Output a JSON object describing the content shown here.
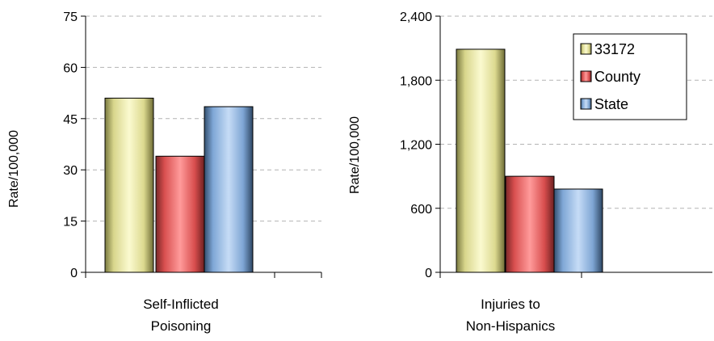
{
  "chart_data": [
    {
      "type": "bar",
      "ylabel": "Rate/100,000",
      "category_lines": [
        "Self-Inflicted",
        "Poisoning"
      ],
      "ylim": [
        0,
        75
      ],
      "yticks": [
        "0",
        "15",
        "30",
        "45",
        "60",
        "75"
      ],
      "ytick_values": [
        0,
        15,
        30,
        45,
        60,
        75
      ],
      "grid": "horizontal dashed",
      "series": [
        {
          "name": "33172",
          "value": 51
        },
        {
          "name": "County",
          "value": 34
        },
        {
          "name": "State",
          "value": 48.5
        }
      ]
    },
    {
      "type": "bar",
      "ylabel": "Rate/100,000",
      "category_lines": [
        "Injuries to",
        "Non-Hispanics"
      ],
      "ylim": [
        0,
        2400
      ],
      "yticks": [
        "0",
        "600",
        "1,200",
        "1,800",
        "2,400"
      ],
      "ytick_values": [
        0,
        600,
        1200,
        1800,
        2400
      ],
      "grid": "horizontal dashed",
      "legend": {
        "placement": "top-right",
        "entries": [
          "33172",
          "County",
          "State"
        ]
      },
      "series": [
        {
          "name": "33172",
          "value": 2090
        },
        {
          "name": "County",
          "value": 900
        },
        {
          "name": "State",
          "value": 780
        }
      ]
    }
  ],
  "colors": {
    "series": [
      "#f2f0a8",
      "#f06a6a",
      "#8fb8e8"
    ],
    "grid": "#b3b3b3",
    "axis": "#000000"
  }
}
